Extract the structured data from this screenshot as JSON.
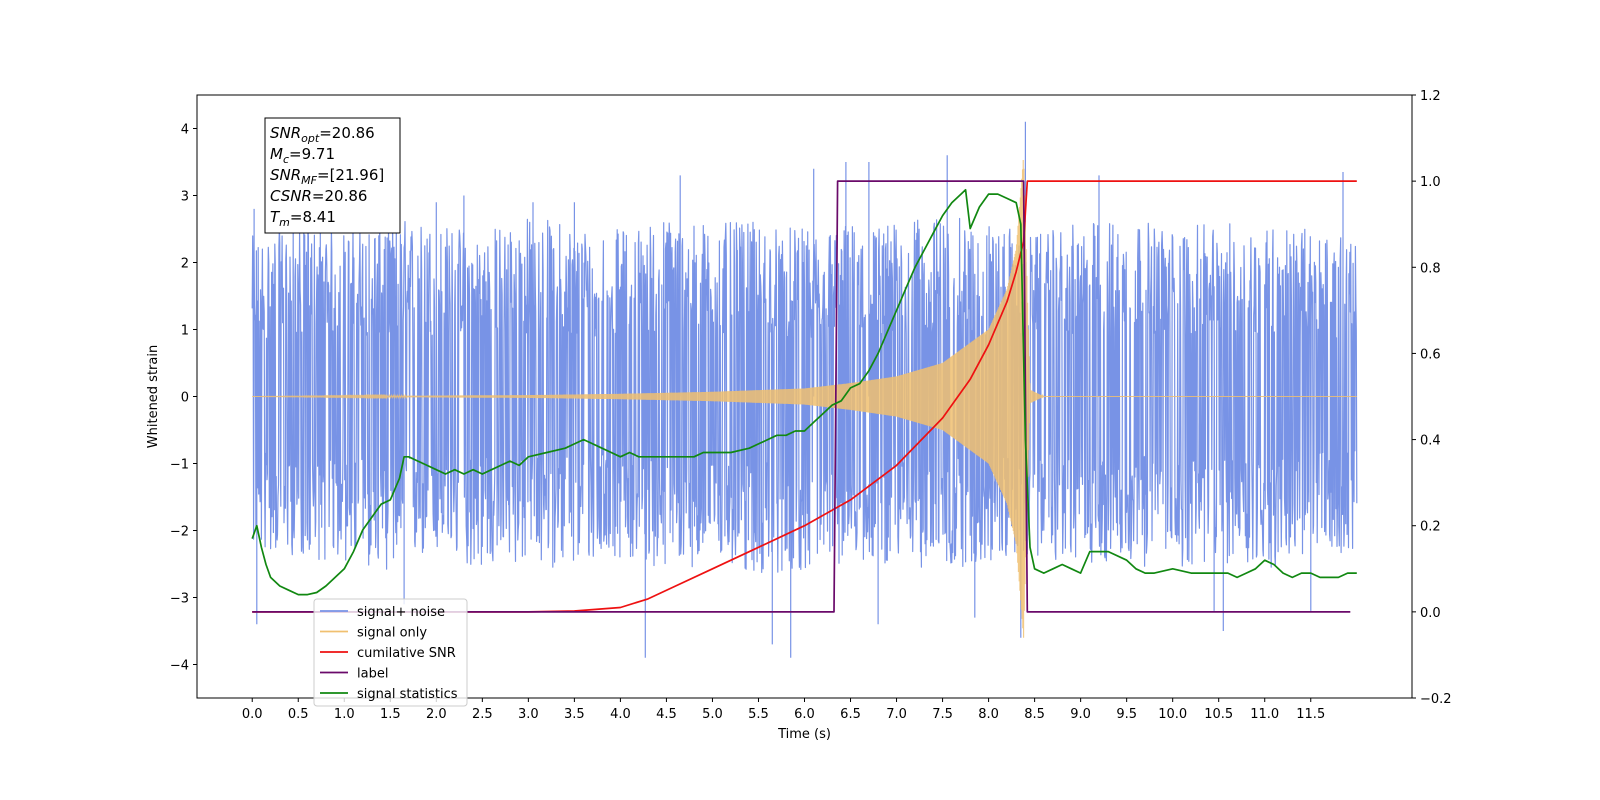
{
  "chart_data": {
    "type": "line",
    "title": "",
    "xlabel": "Time (s)",
    "ylabel": "Whitened strain",
    "y2label": "",
    "xlim": [
      -0.6,
      12.6
    ],
    "ylim": [
      -4.5,
      4.5
    ],
    "y2lim": [
      -0.2,
      1.2
    ],
    "x_ticks": [
      0.0,
      0.5,
      1.0,
      1.5,
      2.0,
      2.5,
      3.0,
      3.5,
      4.0,
      4.5,
      5.0,
      5.5,
      6.0,
      6.5,
      7.0,
      7.5,
      8.0,
      8.5,
      9.0,
      9.5,
      10.0,
      10.5,
      11.0,
      11.5
    ],
    "x_tick_labels": [
      "0.0",
      "0.5",
      "1.0",
      "1.5",
      "2.0",
      "2.5",
      "3.0",
      "3.5",
      "4.0",
      "4.5",
      "5.0",
      "5.5",
      "6.0",
      "6.5",
      "7.0",
      "7.5",
      "8.0",
      "8.5",
      "9.0",
      "9.5",
      "10.0",
      "10.5",
      "11.0",
      "11.5"
    ],
    "y_ticks": [
      -4,
      -3,
      -2,
      -1,
      0,
      1,
      2,
      3,
      4
    ],
    "y_tick_labels": [
      "−4",
      "−3",
      "−2",
      "−1",
      "0",
      "1",
      "2",
      "3",
      "4"
    ],
    "y2_ticks": [
      -0.2,
      0.0,
      0.2,
      0.4,
      0.6,
      0.8,
      1.0,
      1.2
    ],
    "y2_tick_labels": [
      "−0.2",
      "0.0",
      "0.2",
      "0.4",
      "0.6",
      "0.8",
      "1.0",
      "1.2"
    ],
    "grid": false,
    "legend_placement": "lower-left",
    "info_box": {
      "lines": [
        {
          "base": "SNR",
          "sub": "opt",
          "value": "=20.86"
        },
        {
          "base": "M",
          "sub": "c",
          "value": "=9.71"
        },
        {
          "base": "SNR",
          "sub": "MF",
          "value": "=[21.96]"
        },
        {
          "base": "CSNR",
          "sub": "",
          "value": "=20.86"
        },
        {
          "base": "T",
          "sub": "m",
          "value": "=8.41"
        }
      ]
    },
    "series": [
      {
        "name": "signal+ noise",
        "color": "#7893e6",
        "axis": "left",
        "style": "noise",
        "t_start": 0.0,
        "t_end": 12.0,
        "envelope": [
          [
            0.0,
            2.4,
            -2.3
          ],
          [
            0.5,
            2.6,
            -2.4
          ],
          [
            1.0,
            2.5,
            -2.5
          ],
          [
            1.5,
            2.7,
            -2.6
          ],
          [
            2.0,
            2.6,
            -2.4
          ],
          [
            2.5,
            2.5,
            -2.6
          ],
          [
            3.0,
            2.7,
            -2.5
          ],
          [
            3.5,
            2.6,
            -2.6
          ],
          [
            4.0,
            2.5,
            -2.4
          ],
          [
            4.5,
            2.7,
            -2.6
          ],
          [
            5.0,
            2.6,
            -2.5
          ],
          [
            5.5,
            2.6,
            -2.7
          ],
          [
            6.0,
            2.5,
            -2.6
          ],
          [
            6.5,
            2.6,
            -2.5
          ],
          [
            7.0,
            2.6,
            -2.5
          ],
          [
            7.5,
            2.7,
            -2.6
          ],
          [
            8.0,
            2.6,
            -2.5
          ],
          [
            8.5,
            2.4,
            -2.4
          ],
          [
            9.0,
            2.6,
            -2.5
          ],
          [
            9.5,
            2.7,
            -2.5
          ],
          [
            10.0,
            2.5,
            -2.6
          ],
          [
            10.5,
            2.6,
            -2.5
          ],
          [
            11.0,
            2.6,
            -2.6
          ],
          [
            11.5,
            2.5,
            -2.4
          ],
          [
            12.0,
            2.3,
            -2.3
          ]
        ],
        "spikes": [
          [
            0.02,
            2.8
          ],
          [
            0.05,
            -3.4
          ],
          [
            1.65,
            -3.1
          ],
          [
            2.0,
            2.9
          ],
          [
            2.3,
            3.0
          ],
          [
            3.05,
            2.9
          ],
          [
            3.5,
            2.9
          ],
          [
            4.27,
            -3.9
          ],
          [
            4.65,
            3.3
          ],
          [
            5.65,
            -3.7
          ],
          [
            5.85,
            -3.9
          ],
          [
            6.1,
            3.4
          ],
          [
            6.45,
            3.5
          ],
          [
            6.7,
            3.5
          ],
          [
            6.8,
            -3.4
          ],
          [
            7.55,
            3.6
          ],
          [
            7.85,
            -3.3
          ],
          [
            8.35,
            -3.6
          ],
          [
            8.4,
            4.1
          ],
          [
            9.2,
            3.3
          ],
          [
            10.45,
            -3.2
          ],
          [
            10.55,
            -3.5
          ],
          [
            11.5,
            -3.2
          ],
          [
            11.85,
            3.35
          ]
        ]
      },
      {
        "name": "signal only",
        "color": "#f0c070",
        "axis": "left",
        "style": "chirp",
        "t_start": 0.0,
        "t_merge": 8.4,
        "t_end": 12.0,
        "amplitude": [
          [
            0.0,
            0.0
          ],
          [
            3.0,
            0.02
          ],
          [
            4.0,
            0.04
          ],
          [
            5.0,
            0.07
          ],
          [
            6.0,
            0.12
          ],
          [
            6.5,
            0.2
          ],
          [
            7.0,
            0.3
          ],
          [
            7.5,
            0.5
          ],
          [
            8.0,
            1.0
          ],
          [
            8.2,
            1.6
          ],
          [
            8.3,
            2.2
          ],
          [
            8.38,
            3.6
          ],
          [
            8.45,
            0.1
          ],
          [
            8.6,
            0.0
          ],
          [
            12.0,
            0.0
          ]
        ]
      },
      {
        "name": "cumilative SNR",
        "color": "#ee1111",
        "axis": "right",
        "x": [
          0.0,
          3.0,
          3.5,
          4.0,
          4.3,
          4.6,
          5.0,
          5.5,
          6.0,
          6.5,
          7.0,
          7.5,
          7.8,
          8.0,
          8.2,
          8.3,
          8.38,
          8.42,
          8.45,
          12.0
        ],
        "values": [
          0.0,
          0.0,
          0.002,
          0.01,
          0.03,
          0.06,
          0.1,
          0.15,
          0.2,
          0.26,
          0.34,
          0.45,
          0.54,
          0.62,
          0.72,
          0.79,
          0.86,
          1.0,
          1.0,
          1.0
        ]
      },
      {
        "name": "label",
        "color": "#6a0a6a",
        "axis": "right",
        "x": [
          0.0,
          6.32,
          6.36,
          8.38,
          8.42,
          11.93
        ],
        "values": [
          0.0,
          0.0,
          1.0,
          1.0,
          0.0,
          0.0
        ]
      },
      {
        "name": "signal statistics",
        "color": "#118811",
        "axis": "right",
        "x": [
          0.0,
          0.05,
          0.1,
          0.15,
          0.2,
          0.3,
          0.4,
          0.5,
          0.6,
          0.7,
          0.8,
          0.9,
          1.0,
          1.1,
          1.2,
          1.3,
          1.4,
          1.5,
          1.6,
          1.65,
          1.7,
          1.8,
          1.9,
          2.0,
          2.1,
          2.2,
          2.3,
          2.4,
          2.5,
          2.6,
          2.7,
          2.8,
          2.9,
          3.0,
          3.2,
          3.4,
          3.5,
          3.6,
          3.7,
          3.8,
          3.9,
          4.0,
          4.1,
          4.2,
          4.4,
          4.6,
          4.8,
          4.9,
          5.0,
          5.2,
          5.4,
          5.5,
          5.6,
          5.7,
          5.8,
          5.9,
          6.0,
          6.1,
          6.2,
          6.3,
          6.4,
          6.5,
          6.6,
          6.7,
          6.8,
          6.9,
          7.0,
          7.1,
          7.2,
          7.3,
          7.4,
          7.5,
          7.6,
          7.7,
          7.75,
          7.8,
          7.9,
          8.0,
          8.1,
          8.2,
          8.3,
          8.35,
          8.4,
          8.45,
          8.5,
          8.6,
          8.7,
          8.8,
          8.9,
          9.0,
          9.1,
          9.2,
          9.3,
          9.5,
          9.6,
          9.7,
          9.8,
          10.0,
          10.2,
          10.4,
          10.6,
          10.7,
          10.8,
          10.9,
          11.0,
          11.1,
          11.2,
          11.3,
          11.4,
          11.5,
          11.6,
          11.7,
          11.8,
          11.9,
          12.0
        ],
        "values": [
          0.17,
          0.2,
          0.15,
          0.11,
          0.08,
          0.06,
          0.05,
          0.04,
          0.04,
          0.045,
          0.06,
          0.08,
          0.1,
          0.14,
          0.19,
          0.22,
          0.25,
          0.26,
          0.31,
          0.36,
          0.36,
          0.35,
          0.34,
          0.33,
          0.32,
          0.33,
          0.32,
          0.33,
          0.32,
          0.33,
          0.34,
          0.35,
          0.34,
          0.36,
          0.37,
          0.38,
          0.39,
          0.4,
          0.39,
          0.38,
          0.37,
          0.36,
          0.37,
          0.36,
          0.36,
          0.36,
          0.36,
          0.37,
          0.37,
          0.37,
          0.38,
          0.39,
          0.4,
          0.41,
          0.41,
          0.42,
          0.42,
          0.44,
          0.46,
          0.48,
          0.49,
          0.52,
          0.53,
          0.56,
          0.6,
          0.65,
          0.7,
          0.75,
          0.8,
          0.84,
          0.88,
          0.92,
          0.95,
          0.97,
          0.98,
          0.89,
          0.94,
          0.97,
          0.97,
          0.96,
          0.95,
          0.9,
          0.4,
          0.15,
          0.1,
          0.09,
          0.1,
          0.11,
          0.1,
          0.09,
          0.14,
          0.14,
          0.14,
          0.12,
          0.1,
          0.09,
          0.09,
          0.1,
          0.09,
          0.09,
          0.09,
          0.08,
          0.09,
          0.1,
          0.12,
          0.11,
          0.09,
          0.08,
          0.09,
          0.09,
          0.08,
          0.08,
          0.08,
          0.09,
          0.09
        ]
      }
    ],
    "legend": [
      {
        "label": "signal+ noise",
        "color": "#7893e6"
      },
      {
        "label": "signal only",
        "color": "#f0c070"
      },
      {
        "label": "cumilative SNR",
        "color": "#ee1111"
      },
      {
        "label": "label",
        "color": "#6a0a6a"
      },
      {
        "label": "signal statistics",
        "color": "#118811"
      }
    ]
  }
}
